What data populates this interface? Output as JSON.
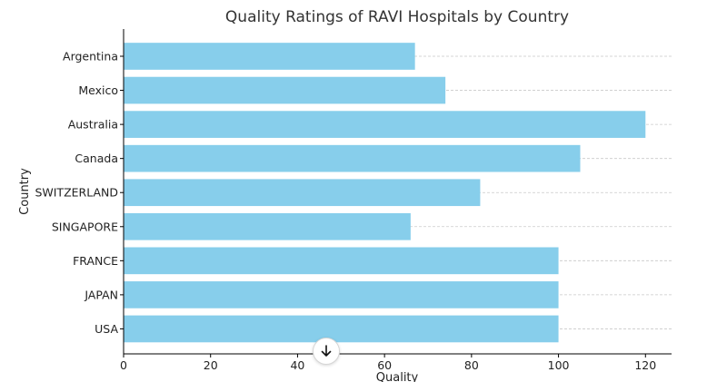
{
  "chart_data": {
    "type": "bar",
    "orientation": "horizontal",
    "title": "Quality Ratings of RAVI Hospitals by Country",
    "xlabel": "Quality",
    "ylabel": "Country",
    "categories": [
      "Argentina",
      "Mexico",
      "Australia",
      "Canada",
      "SWITZERLAND",
      "SINGAPORE",
      "FRANCE",
      "JAPAN",
      "USA"
    ],
    "values": [
      67,
      74,
      120,
      105,
      82,
      66,
      100,
      100,
      100
    ],
    "xlim": [
      0,
      126
    ],
    "xticks": [
      "0",
      "20",
      "40",
      "60",
      "80",
      "100",
      "120"
    ],
    "grid": "horizontal-dashed",
    "bar_color": "#87ceeb"
  },
  "controls": {
    "scroll_down_icon": "arrow-down-icon"
  }
}
